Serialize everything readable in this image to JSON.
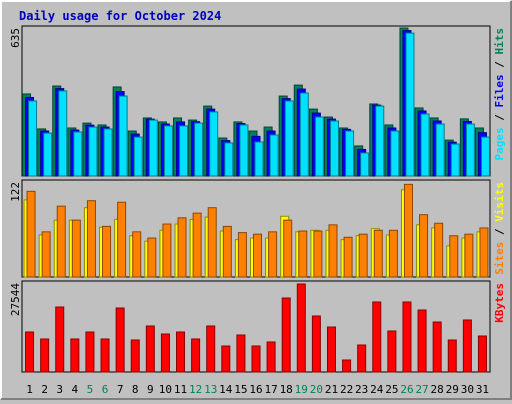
{
  "title": "Daily usage for October 2024",
  "chart_data": [
    {
      "type": "bar",
      "ylim": [
        0,
        635
      ],
      "yticks": [
        635
      ],
      "legend_separator": " / ",
      "series": [
        {
          "name": "Hits",
          "color": "#00805c",
          "values": [
            352,
            202,
            386,
            206,
            227,
            219,
            382,
            193,
            249,
            232,
            249,
            240,
            300,
            163,
            232,
            193,
            210,
            343,
            390,
            287,
            253,
            206,
            129,
            309,
            219,
            635,
            292,
            249,
            154,
            245,
            206
          ]
        },
        {
          "name": "Files",
          "color": "#0000ff",
          "values": [
            337,
            193,
            375,
            197,
            218,
            210,
            362,
            180,
            244,
            223,
            232,
            233,
            287,
            152,
            225,
            170,
            193,
            332,
            373,
            270,
            244,
            200,
            114,
            304,
            206,
            624,
            279,
            236,
            145,
            234,
            186
          ]
        },
        {
          "name": "Pages",
          "color": "#00e0ff",
          "values": [
            322,
            184,
            365,
            189,
            210,
            202,
            343,
            167,
            240,
            215,
            215,
            227,
            275,
            142,
            219,
            146,
            176,
            322,
            356,
            253,
            236,
            193,
            99,
            300,
            193,
            613,
            266,
            223,
            137,
            223,
            167
          ]
        }
      ]
    },
    {
      "type": "bar",
      "ylim": [
        0,
        122
      ],
      "yticks": [
        122
      ],
      "legend_separator": " / ",
      "series": [
        {
          "name": "Visits",
          "color": "#ffff00",
          "values": [
            99,
            54,
            73,
            73,
            89,
            64,
            74,
            53,
            46,
            60,
            68,
            74,
            77,
            59,
            48,
            50,
            50,
            78,
            58,
            60,
            60,
            48,
            53,
            62,
            54,
            112,
            67,
            63,
            40,
            50,
            58
          ]
        },
        {
          "name": "Sites",
          "color": "#ff8000",
          "values": [
            110,
            58,
            91,
            73,
            98,
            65,
            96,
            58,
            50,
            68,
            76,
            82,
            89,
            65,
            57,
            55,
            58,
            73,
            59,
            59,
            67,
            51,
            55,
            60,
            60,
            119,
            80,
            69,
            53,
            55,
            63
          ]
        }
      ]
    },
    {
      "type": "bar",
      "ylim": [
        0,
        27544
      ],
      "yticks": [
        27544
      ],
      "categories": [
        "1",
        "2",
        "3",
        "4",
        "5",
        "6",
        "7",
        "8",
        "9",
        "10",
        "11",
        "12",
        "13",
        "14",
        "15",
        "16",
        "17",
        "18",
        "19",
        "20",
        "21",
        "22",
        "23",
        "24",
        "25",
        "26",
        "27",
        "28",
        "29",
        "30",
        "31"
      ],
      "category_colors": [
        "#000000",
        "#000000",
        "#000000",
        "#000000",
        "#00805c",
        "#00805c",
        "#000000",
        "#000000",
        "#000000",
        "#000000",
        "#000000",
        "#00805c",
        "#00805c",
        "#000000",
        "#000000",
        "#000000",
        "#000000",
        "#000000",
        "#00805c",
        "#00805c",
        "#000000",
        "#000000",
        "#000000",
        "#000000",
        "#000000",
        "#00805c",
        "#00805c",
        "#000000",
        "#000000",
        "#000000",
        "#000000"
      ],
      "series": [
        {
          "name": "KBytes",
          "color": "#ff0000",
          "values": [
            12380,
            10214,
            20117,
            10214,
            12380,
            10214,
            19808,
            9904,
            14237,
            11761,
            12380,
            10214,
            14237,
            8047,
            11452,
            8047,
            9285,
            22903,
            27236,
            17332,
            13927,
            3714,
            8357,
            21665,
            12690,
            21665,
            19189,
            15475,
            9904,
            16094,
            11142
          ]
        }
      ]
    }
  ]
}
